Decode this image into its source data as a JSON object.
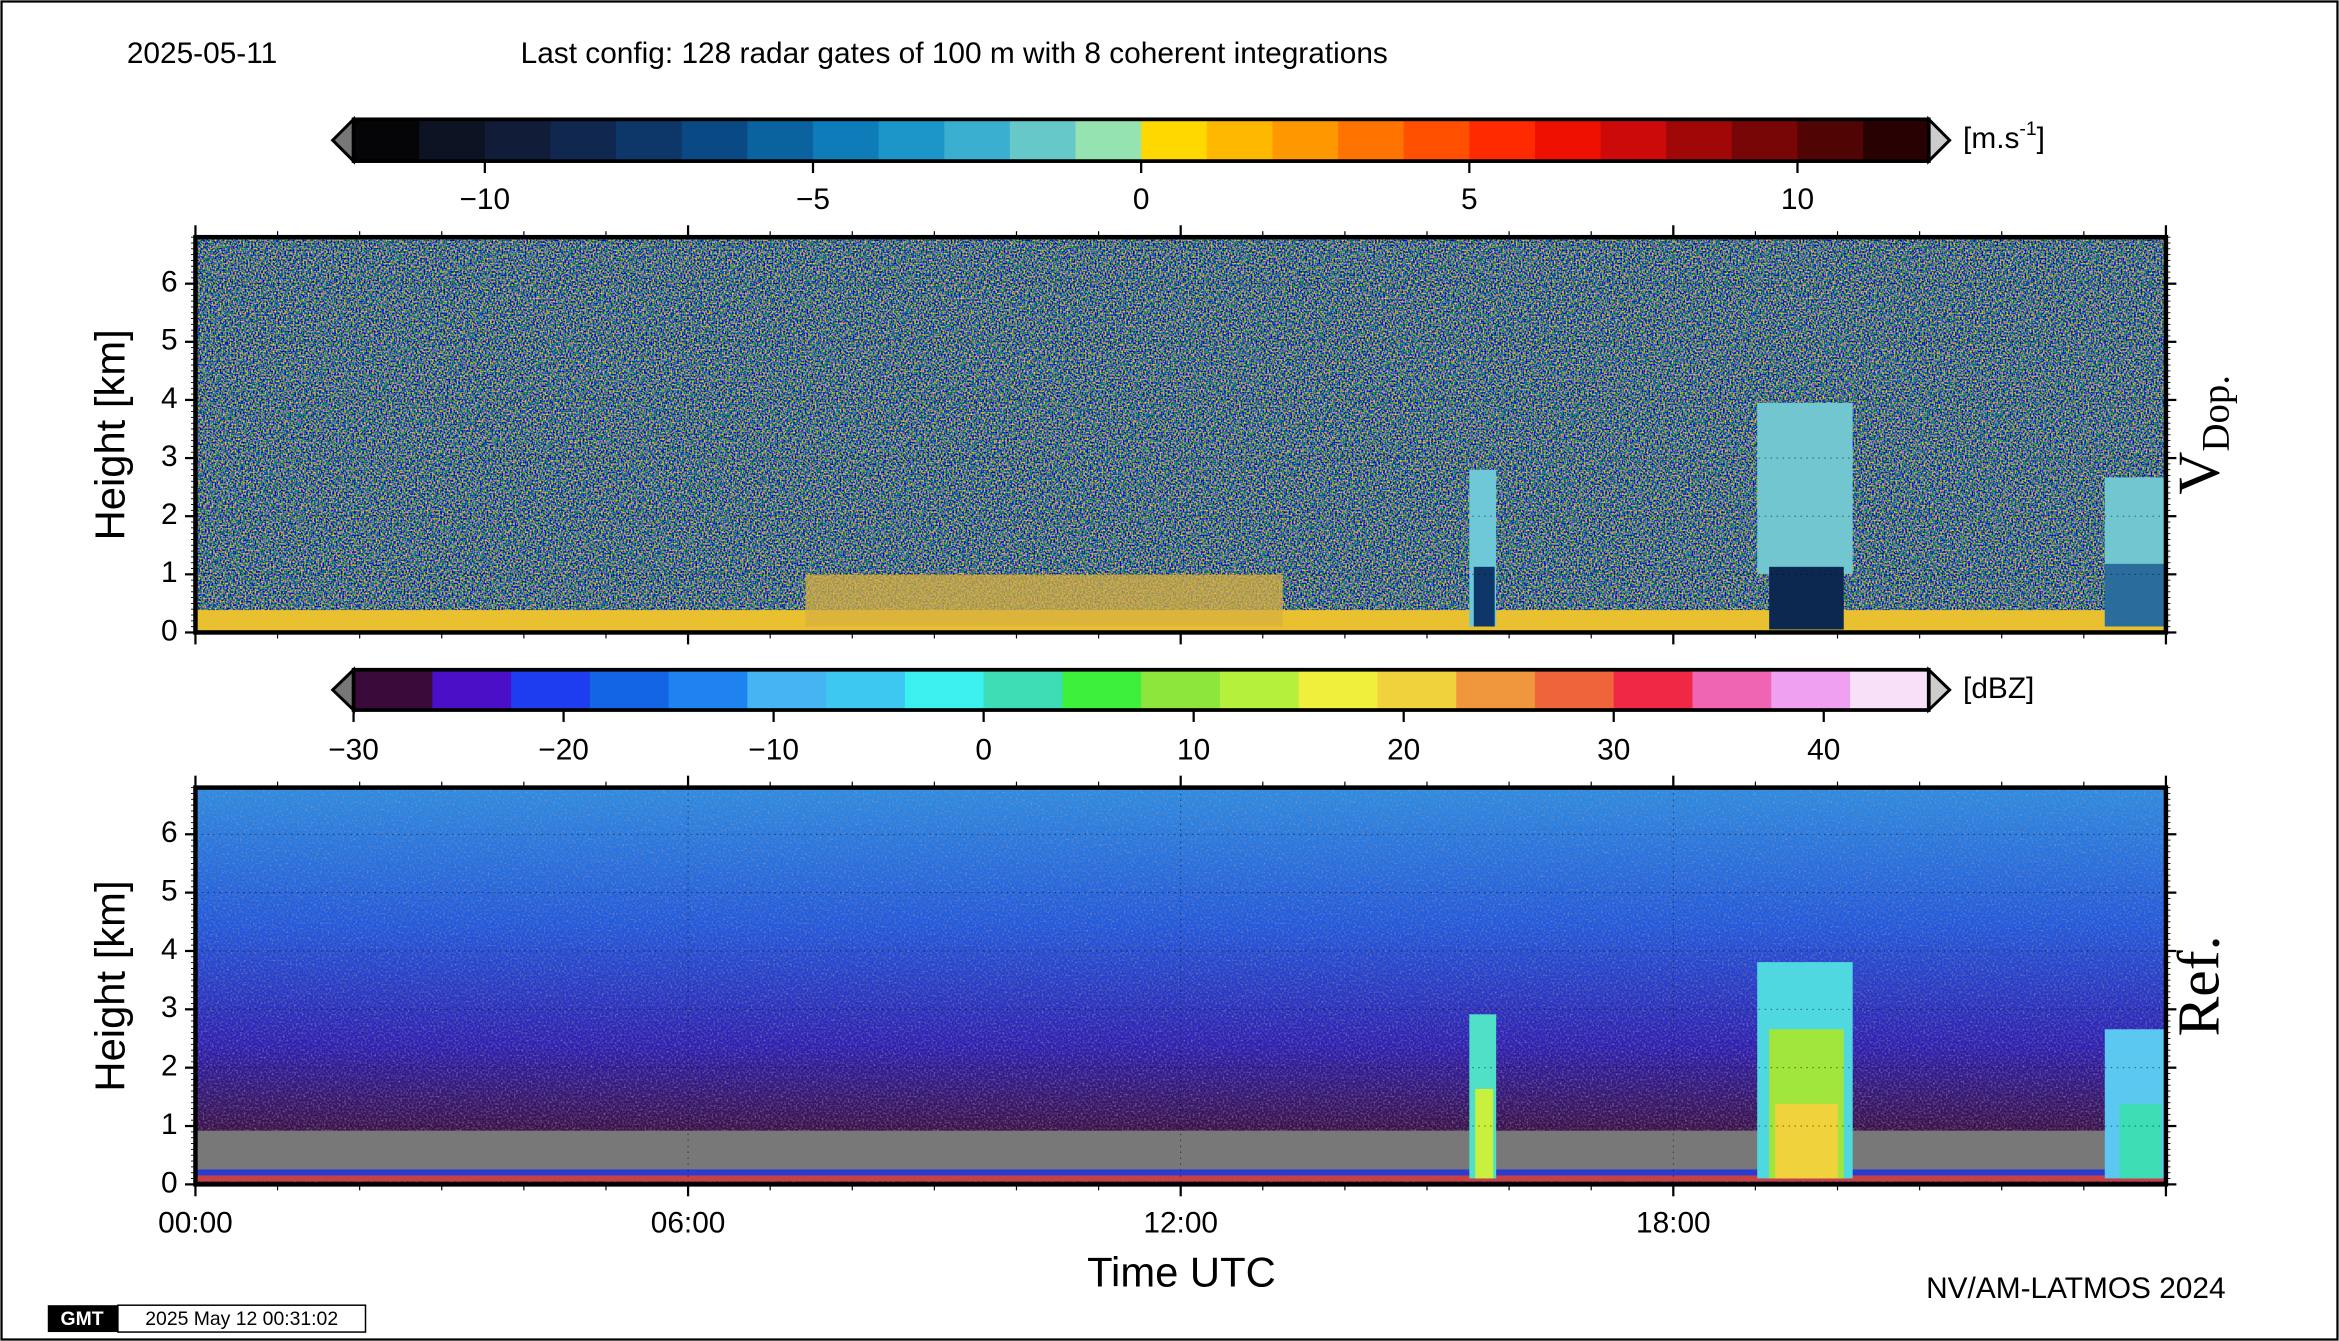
{
  "header": {
    "date": "2025-05-11",
    "config": "Last config: 128 radar gates of 100 m with 8 coherent integrations"
  },
  "chart_data": [
    {
      "type": "heatmap",
      "panel_label": "V",
      "panel_label_sub": "Dop.",
      "ylabel": "Height [km]",
      "ylim": [
        0,
        6.8
      ],
      "yticks": [
        0,
        1,
        2,
        3,
        4,
        5,
        6
      ],
      "xlim": [
        0,
        24
      ],
      "grid": true,
      "colorbar": {
        "unit": "[m.s",
        "unit_sup": "-1",
        "unit_end": "]",
        "lim": [
          -12,
          12
        ],
        "ticks": [
          {
            "value": -10,
            "label": "−10"
          },
          {
            "value": -5,
            "label": "−5"
          },
          0,
          5,
          10
        ],
        "colors": [
          "#050508",
          "#0c1322",
          "#101c38",
          "#102850",
          "#0d3768",
          "#0a4a84",
          "#0a629e",
          "#0d7cb8",
          "#1c96c8",
          "#3aafd0",
          "#66c8c8",
          "#95e3b0",
          "#ffd800",
          "#ffb800",
          "#ff9800",
          "#ff7400",
          "#ff5000",
          "#ff2a00",
          "#ee1000",
          "#cc0a0a",
          "#a00808",
          "#780606",
          "#500404",
          "#280202"
        ]
      }
    },
    {
      "type": "heatmap",
      "panel_label": "Ref.",
      "ylabel": "Height [km]",
      "xlabel": "Time UTC",
      "ylim": [
        0,
        6.8
      ],
      "yticks": [
        0,
        1,
        2,
        3,
        4,
        5,
        6
      ],
      "xlim": [
        0,
        24
      ],
      "grid": true,
      "xticks": [
        {
          "value": 0,
          "label": "00:00"
        },
        {
          "value": 6,
          "label": "06:00"
        },
        {
          "value": 12,
          "label": "12:00"
        },
        {
          "value": 18,
          "label": "18:00"
        }
      ],
      "colorbar": {
        "unit": "[dBZ]",
        "lim": [
          -30,
          45
        ],
        "ticks": [
          {
            "value": -30,
            "label": "−30"
          },
          {
            "value": -20,
            "label": "−20"
          },
          {
            "value": -10,
            "label": "−10"
          },
          0,
          10,
          20,
          30,
          40
        ],
        "colors": [
          "#3a0a3a",
          "#4b0fc8",
          "#1e3cf0",
          "#1464e6",
          "#1e82f0",
          "#46b4f0",
          "#3cc8f0",
          "#3cf0f0",
          "#3cdcb4",
          "#3cf03c",
          "#8ce63c",
          "#b4f03c",
          "#f0f03c",
          "#f0d23c",
          "#f0963c",
          "#f0643c",
          "#f02846",
          "#f064b4",
          "#f0a0f0",
          "#f8e0f8"
        ]
      }
    }
  ],
  "footer": {
    "credit": "NV/AM-LATMOS 2024",
    "logo": "GMT",
    "stamp": "2025 May 12 00:31:02"
  }
}
